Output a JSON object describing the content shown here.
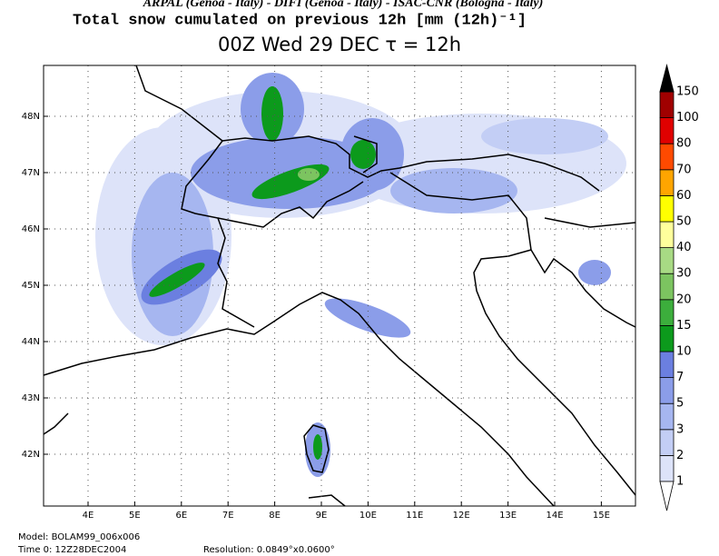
{
  "header": {
    "credits": "ARPAL (Genoa - Italy)  -  DIFI (Genoa - Italy)  -  ISAC-CNR (Bologna - Italy)",
    "title": "Total snow cumulated on previous 12h [mm (12h)⁻¹]",
    "subtitle": "00Z Wed 29 DEC   τ = 12h"
  },
  "map": {
    "lon_labels": [
      "4E",
      "5E",
      "6E",
      "7E",
      "8E",
      "9E",
      "10E",
      "11E",
      "12E",
      "13E",
      "14E",
      "15E"
    ],
    "lat_labels": [
      "48N",
      "47N",
      "46N",
      "45N",
      "44N",
      "43N",
      "42N"
    ]
  },
  "colorbar": {
    "levels": [
      1,
      2,
      3,
      5,
      7,
      10,
      15,
      20,
      30,
      40,
      50,
      60,
      70,
      80,
      100,
      150
    ],
    "colors": [
      "#dde3f9",
      "#c3cef5",
      "#a6b6f0",
      "#8b9de9",
      "#6b7fe0",
      "#0c9a1c",
      "#3cae3c",
      "#7cc460",
      "#a8da84",
      "#ffff9c",
      "#ffff00",
      "#ffa500",
      "#ff4a00",
      "#e00000",
      "#a00000"
    ]
  },
  "footer": {
    "model": "Model: BOLAM99_006x006",
    "time": "Time 0: 12Z28DEC2004",
    "resolution": "Resolution: 0.0849°x0.0600°"
  }
}
